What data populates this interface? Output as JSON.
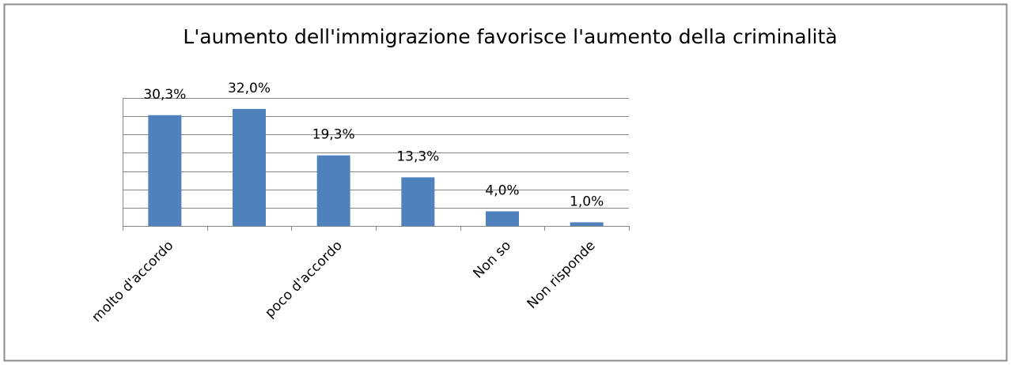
{
  "chart_data": {
    "type": "bar",
    "title": "L'aumento dell'immigrazione favorisce l'aumento della criminalità",
    "categories": [
      "molto d'accordo",
      null,
      "poco d'accordo",
      null,
      "Non so",
      "Non risponde"
    ],
    "values": [
      30.3,
      32.0,
      19.3,
      13.3,
      4.0,
      1.0
    ],
    "value_labels": [
      "30,3%",
      "32,0%",
      "19,3%",
      "13,3%",
      "4,0%",
      "1,0%"
    ],
    "color": "#4f81bd",
    "ylim": [
      0,
      35
    ],
    "yticks": [
      0,
      5,
      10,
      15,
      20,
      25,
      30,
      35
    ],
    "grid": true
  }
}
